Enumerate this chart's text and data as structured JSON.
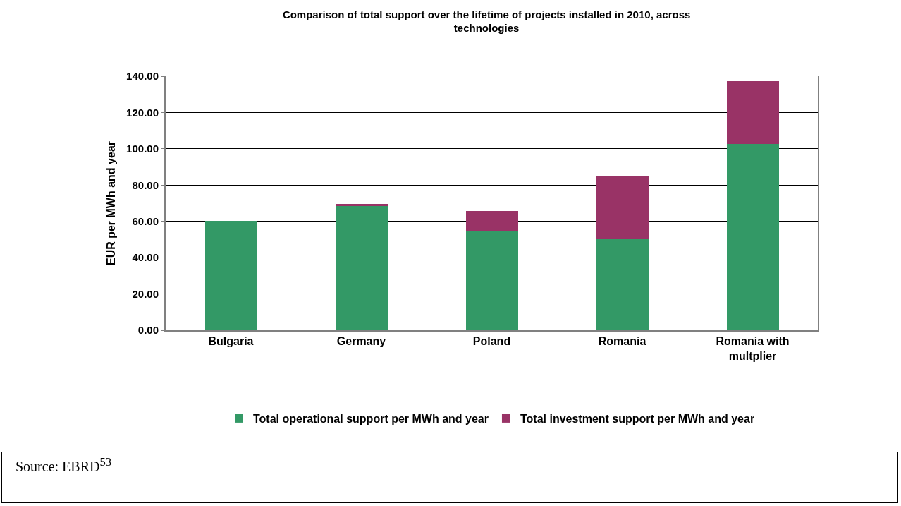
{
  "chart_data": {
    "type": "bar",
    "title": "Comparison of total support over the lifetime of projects installed in 2010, across technologies",
    "ylabel": "EUR per MWh and year",
    "categories": [
      "Bulgaria",
      "Germany",
      "Poland",
      "Romania",
      "Romania with multplier"
    ],
    "series": [
      {
        "name": "Total operational support per MWh and year",
        "color": "#339966",
        "values": [
          60.3,
          68.4,
          54.9,
          50.6,
          102.8
        ]
      },
      {
        "name": "Total investment support per MWh and year",
        "color": "#993366",
        "values": [
          0,
          1.2,
          10.8,
          34.1,
          34.3
        ]
      }
    ],
    "stacked": true,
    "ylim": [
      0,
      140
    ],
    "yticks": [
      {
        "value": 0,
        "label": "0.00"
      },
      {
        "value": 20,
        "label": "20.00"
      },
      {
        "value": 40,
        "label": "40.00"
      },
      {
        "value": 60,
        "label": "60.00"
      },
      {
        "value": 80,
        "label": "80.00"
      },
      {
        "value": 100,
        "label": "100.00"
      },
      {
        "value": 120,
        "label": "120.00"
      },
      {
        "value": 140,
        "label": "140.00"
      }
    ],
    "grid": "y",
    "legend": "bottom",
    "annotations": [
      "Source: EBRD$^{53}$"
    ]
  }
}
